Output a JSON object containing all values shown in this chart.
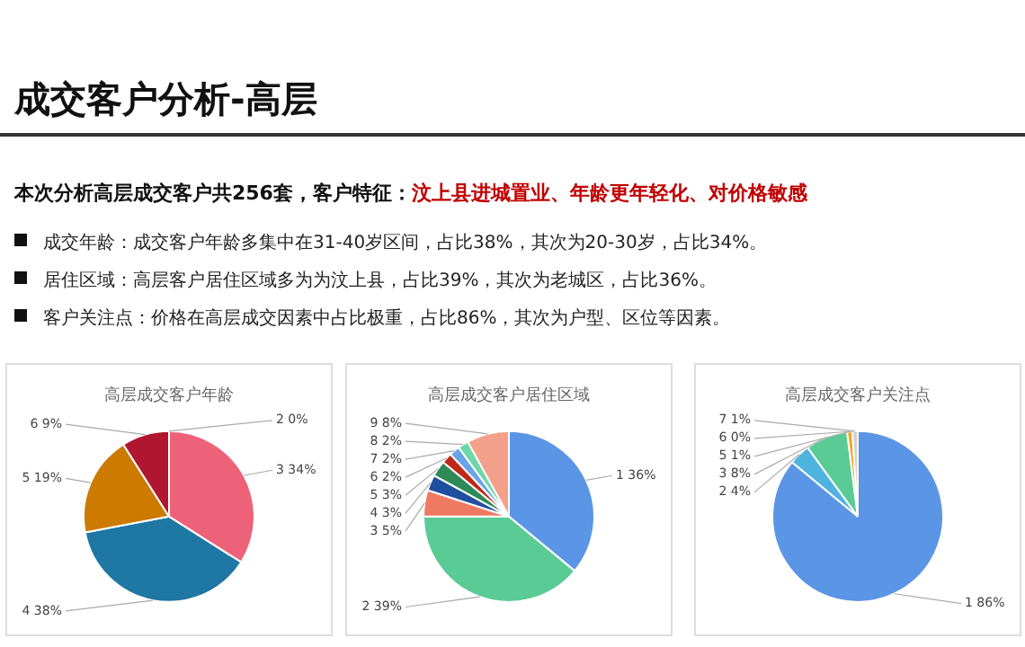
{
  "chart_data": [
    {
      "type": "other",
      "title": "成交客户分析-高层",
      "annotations": [
        "本次分析高层成交客户共256套，客户特征：",
        "汶上县进城置业、年龄更年轻化、对价格敏感",
        "成交年龄：成交客户年龄多集中在31-40岁区间，占比38%，其次为20-30岁，占比34%。",
        "居住区域：高层客户居住区域多为为汶上县，占比39%，其次为老城区，占比36%。",
        "客户关注点：价格在高层成交因素中占比极重，占比86%，其次为户型、区位等因素。"
      ]
    },
    {
      "type": "pie",
      "title": "高层成交客户年龄",
      "categories": [
        "2",
        "3",
        "4",
        "5",
        "6"
      ],
      "values": [
        0,
        34,
        38,
        19,
        9
      ],
      "value_labels": [
        "0%",
        "34%",
        "38%",
        "19%",
        "9%"
      ],
      "colors": [
        "#f4b6b6",
        "#ee6279",
        "#1f77a4",
        "#cc7a00",
        "#b0162f"
      ]
    },
    {
      "type": "pie",
      "title": "高层成交客户居住区域",
      "categories": [
        "1",
        "2",
        "3",
        "4",
        "5",
        "6",
        "7",
        "8",
        "9"
      ],
      "values": [
        36,
        39,
        5,
        3,
        3,
        2,
        2,
        2,
        8
      ],
      "value_labels": [
        "36%",
        "39%",
        "5%",
        "3%",
        "3%",
        "2%",
        "2%",
        "2%",
        "8%"
      ],
      "colors": [
        "#5b95e5",
        "#5acb95",
        "#ee7a63",
        "#1f4fa0",
        "#2e8b57",
        "#c0281a",
        "#6aa4e8",
        "#6fd6a8",
        "#f3a08a"
      ]
    },
    {
      "type": "pie",
      "title": "高层成交客户关注点",
      "categories": [
        "1",
        "2",
        "3",
        "5",
        "6",
        "7"
      ],
      "values": [
        86,
        4,
        8,
        1,
        0,
        1
      ],
      "value_labels": [
        "86%",
        "4%",
        "8%",
        "1%",
        "0%",
        "1%"
      ],
      "colors": [
        "#5b95e5",
        "#4fb3e0",
        "#5acb95",
        "#f5a623",
        "#c0281a",
        "#d0d0d0"
      ]
    }
  ]
}
